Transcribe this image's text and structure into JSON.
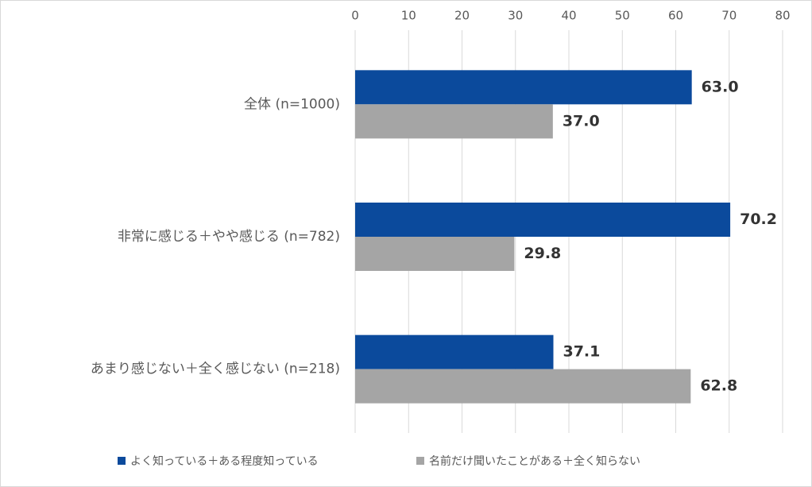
{
  "chart_data": {
    "type": "bar",
    "orientation": "horizontal",
    "categories": [
      "全体 (n=1000)",
      "非常に感じる＋やや感じる (n=782)",
      "あまり感じない＋全く感じない (n=218)"
    ],
    "series": [
      {
        "name": "よく知っている＋ある程度知っている",
        "color": "#0b4a9c",
        "values": [
          63.0,
          70.2,
          37.1
        ],
        "value_labels": [
          "63.0",
          "70.2",
          "37.1"
        ]
      },
      {
        "name": "名前だけ聞いたことがある＋全く知らない",
        "color": "#a5a5a5",
        "values": [
          37.0,
          29.8,
          62.8
        ],
        "value_labels": [
          "37.0",
          "29.8",
          "62.8"
        ]
      }
    ],
    "xlim": [
      0,
      80
    ],
    "xticks": [
      0,
      10,
      20,
      30,
      40,
      50,
      60,
      70,
      80
    ],
    "grid": true,
    "legend": "bottom"
  }
}
